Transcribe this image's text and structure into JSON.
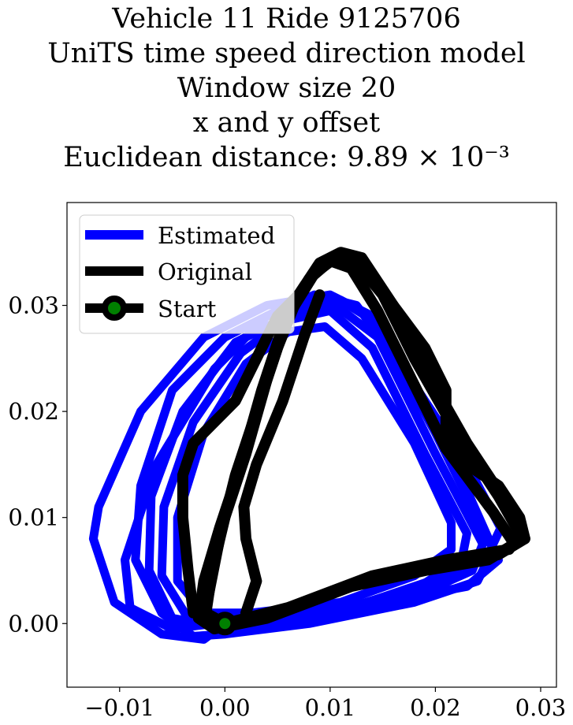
{
  "chart_data": {
    "type": "line",
    "title_lines": [
      "Vehicle 11 Ride 9125706",
      "UniTS time speed direction model",
      "Window size 20",
      "x and y offset",
      "Euclidean distance: 9.89 × 10⁻³"
    ],
    "xlabel": "",
    "ylabel": "",
    "xlim": [
      -0.015,
      0.0315
    ],
    "ylim": [
      -0.006,
      0.0397
    ],
    "x_ticks": [
      -0.01,
      0.0,
      0.01,
      0.02,
      0.03
    ],
    "x_tick_labels": [
      "−0.01",
      "0.00",
      "0.01",
      "0.02",
      "0.03"
    ],
    "y_ticks": [
      0.0,
      0.01,
      0.02,
      0.03
    ],
    "y_tick_labels": [
      "0.00",
      "0.01",
      "0.02",
      "0.03"
    ],
    "grid": false,
    "legend_position": "top-left",
    "series": [
      {
        "name": "Estimated",
        "color": "#0000ff",
        "loops": [
          [
            [
              0.0,
              0.0
            ],
            [
              0.005,
              0.0005
            ],
            [
              0.015,
              0.002
            ],
            [
              0.023,
              0.0035
            ],
            [
              0.026,
              0.006
            ],
            [
              0.02,
              0.018
            ],
            [
              0.014,
              0.029
            ],
            [
              0.01,
              0.031
            ],
            [
              0.004,
              0.03
            ],
            [
              -0.002,
              0.027
            ],
            [
              -0.008,
              0.02
            ],
            [
              -0.012,
              0.011
            ],
            [
              -0.0125,
              0.008
            ],
            [
              -0.0105,
              0.002
            ],
            [
              -0.006,
              -0.001
            ],
            [
              -0.002,
              -0.0015
            ],
            [
              0.0,
              0.0
            ]
          ],
          [
            [
              0.0,
              -0.001
            ],
            [
              0.008,
              0.0
            ],
            [
              0.018,
              0.002
            ],
            [
              0.024,
              0.004
            ],
            [
              0.0255,
              0.007
            ],
            [
              0.021,
              0.017
            ],
            [
              0.015,
              0.028
            ],
            [
              0.011,
              0.0305
            ],
            [
              0.005,
              0.0295
            ],
            [
              0.0,
              0.027
            ],
            [
              -0.005,
              0.022
            ],
            [
              -0.008,
              0.013
            ],
            [
              -0.0085,
              0.006
            ],
            [
              -0.006,
              0.001
            ],
            [
              -0.003,
              -0.0012
            ],
            [
              0.0,
              -0.001
            ]
          ],
          [
            [
              0.001,
              -0.0005
            ],
            [
              0.009,
              0.0005
            ],
            [
              0.019,
              0.003
            ],
            [
              0.0235,
              0.005
            ],
            [
              0.0245,
              0.0075
            ],
            [
              0.02,
              0.016
            ],
            [
              0.0145,
              0.027
            ],
            [
              0.0105,
              0.03
            ],
            [
              0.006,
              0.029
            ],
            [
              0.001,
              0.0265
            ],
            [
              -0.004,
              0.02
            ],
            [
              -0.007,
              0.012
            ],
            [
              -0.0072,
              0.005
            ],
            [
              -0.005,
              0.0005
            ],
            [
              0.001,
              -0.0005
            ]
          ],
          [
            [
              0.002,
              0.0
            ],
            [
              0.01,
              0.001
            ],
            [
              0.0185,
              0.0035
            ],
            [
              0.0225,
              0.006
            ],
            [
              0.023,
              0.0085
            ],
            [
              0.019,
              0.016
            ],
            [
              0.014,
              0.026
            ],
            [
              0.01,
              0.0295
            ],
            [
              0.0055,
              0.0285
            ],
            [
              0.0015,
              0.0255
            ],
            [
              -0.003,
              0.019
            ],
            [
              -0.0058,
              0.011
            ],
            [
              -0.006,
              0.0045
            ],
            [
              -0.0035,
              0.0005
            ],
            [
              0.002,
              0.0
            ]
          ],
          [
            [
              0.0025,
              0.001
            ],
            [
              0.011,
              0.002
            ],
            [
              0.018,
              0.0045
            ],
            [
              0.0215,
              0.007
            ],
            [
              0.0215,
              0.0095
            ],
            [
              0.018,
              0.017
            ],
            [
              0.013,
              0.025
            ],
            [
              0.0095,
              0.028
            ],
            [
              0.006,
              0.0275
            ],
            [
              0.002,
              0.0245
            ],
            [
              -0.002,
              0.018
            ],
            [
              -0.0045,
              0.01
            ],
            [
              -0.0045,
              0.004
            ],
            [
              -0.002,
              0.001
            ],
            [
              0.0025,
              0.001
            ]
          ],
          [
            [
              0.003,
              0.0005
            ],
            [
              0.012,
              0.0015
            ],
            [
              0.0195,
              0.004
            ],
            [
              0.025,
              0.0065
            ],
            [
              0.0262,
              0.009
            ],
            [
              0.023,
              0.015
            ],
            [
              0.017,
              0.024
            ],
            [
              0.0125,
              0.03
            ],
            [
              0.0085,
              0.031
            ],
            [
              0.004,
              0.029
            ],
            [
              -0.001,
              0.024
            ],
            [
              -0.0065,
              0.015
            ],
            [
              -0.0095,
              0.006
            ],
            [
              -0.009,
              0.0015
            ],
            [
              -0.005,
              -0.0005
            ],
            [
              0.003,
              0.0005
            ]
          ]
        ]
      },
      {
        "name": "Original",
        "color": "#000000",
        "loops": [
          [
            [
              0.0,
              0.0
            ],
            [
              0.005,
              0.001
            ],
            [
              0.013,
              0.004
            ],
            [
              0.02,
              0.0055
            ],
            [
              0.026,
              0.0065
            ],
            [
              0.0285,
              0.008
            ],
            [
              0.027,
              0.011
            ],
            [
              0.023,
              0.017
            ],
            [
              0.019,
              0.024
            ],
            [
              0.016,
              0.03
            ],
            [
              0.013,
              0.0345
            ],
            [
              0.011,
              0.035
            ],
            [
              0.009,
              0.034
            ],
            [
              0.007,
              0.031
            ],
            [
              0.005,
              0.026
            ],
            [
              0.003,
              0.02
            ],
            [
              0.001,
              0.014
            ],
            [
              -0.0005,
              0.008
            ],
            [
              -0.0015,
              0.003
            ],
            [
              -0.002,
              0.0005
            ],
            [
              0.0,
              0.0
            ]
          ],
          [
            [
              0.0,
              0.0
            ],
            [
              0.006,
              0.0015
            ],
            [
              0.014,
              0.0045
            ],
            [
              0.021,
              0.006
            ],
            [
              0.027,
              0.007
            ],
            [
              0.028,
              0.0085
            ],
            [
              0.026,
              0.012
            ],
            [
              0.022,
              0.018
            ],
            [
              0.018,
              0.025
            ],
            [
              0.015,
              0.031
            ],
            [
              0.0125,
              0.034
            ],
            [
              0.0105,
              0.0345
            ],
            [
              0.0085,
              0.033
            ],
            [
              0.006,
              0.029
            ],
            [
              0.004,
              0.023
            ],
            [
              0.002,
              0.016
            ],
            [
              0.0,
              0.01
            ],
            [
              -0.0012,
              0.005
            ],
            [
              -0.0018,
              0.001
            ],
            [
              0.0,
              0.0
            ]
          ],
          [
            [
              -0.001,
              -0.0005
            ],
            [
              0.004,
              0.0005
            ],
            [
              0.012,
              0.0035
            ],
            [
              0.019,
              0.005
            ],
            [
              0.025,
              0.006
            ],
            [
              0.0275,
              0.0075
            ],
            [
              0.0255,
              0.0105
            ],
            [
              0.021,
              0.0165
            ],
            [
              0.0175,
              0.0235
            ],
            [
              0.0145,
              0.0295
            ],
            [
              0.012,
              0.0335
            ],
            [
              0.01,
              0.0342
            ],
            [
              0.008,
              0.0325
            ],
            [
              0.0055,
              0.028
            ],
            [
              0.0035,
              0.022
            ],
            [
              0.0015,
              0.015
            ],
            [
              -0.0005,
              0.009
            ],
            [
              -0.002,
              0.004
            ],
            [
              -0.0025,
              0.0005
            ],
            [
              -0.001,
              -0.0005
            ]
          ],
          [
            [
              0.002,
              0.001
            ],
            [
              0.003,
              0.004
            ],
            [
              0.002,
              0.008
            ],
            [
              0.0018,
              0.011
            ],
            [
              0.003,
              0.015
            ],
            [
              0.0055,
              0.021
            ],
            [
              0.0075,
              0.027
            ],
            [
              0.009,
              0.031
            ]
          ],
          [
            [
              -0.003,
              0.001
            ],
            [
              -0.0035,
              0.005
            ],
            [
              -0.004,
              0.01
            ],
            [
              -0.004,
              0.014
            ],
            [
              -0.003,
              0.017
            ],
            [
              -0.001,
              0.019
            ],
            [
              0.001,
              0.021
            ],
            [
              0.003,
              0.025
            ],
            [
              0.005,
              0.029
            ],
            [
              0.007,
              0.031
            ]
          ],
          [
            [
              0.016,
              0.03
            ],
            [
              0.019,
              0.026
            ],
            [
              0.021,
              0.022
            ],
            [
              0.021,
              0.018
            ],
            [
              0.023,
              0.015
            ],
            [
              0.026,
              0.013
            ],
            [
              0.028,
              0.01
            ],
            [
              0.0285,
              0.008
            ]
          ]
        ]
      }
    ],
    "start_point": {
      "name": "Start",
      "x": 0.0,
      "y": 0.0,
      "fill": "#008000",
      "edge": "#000000"
    }
  }
}
